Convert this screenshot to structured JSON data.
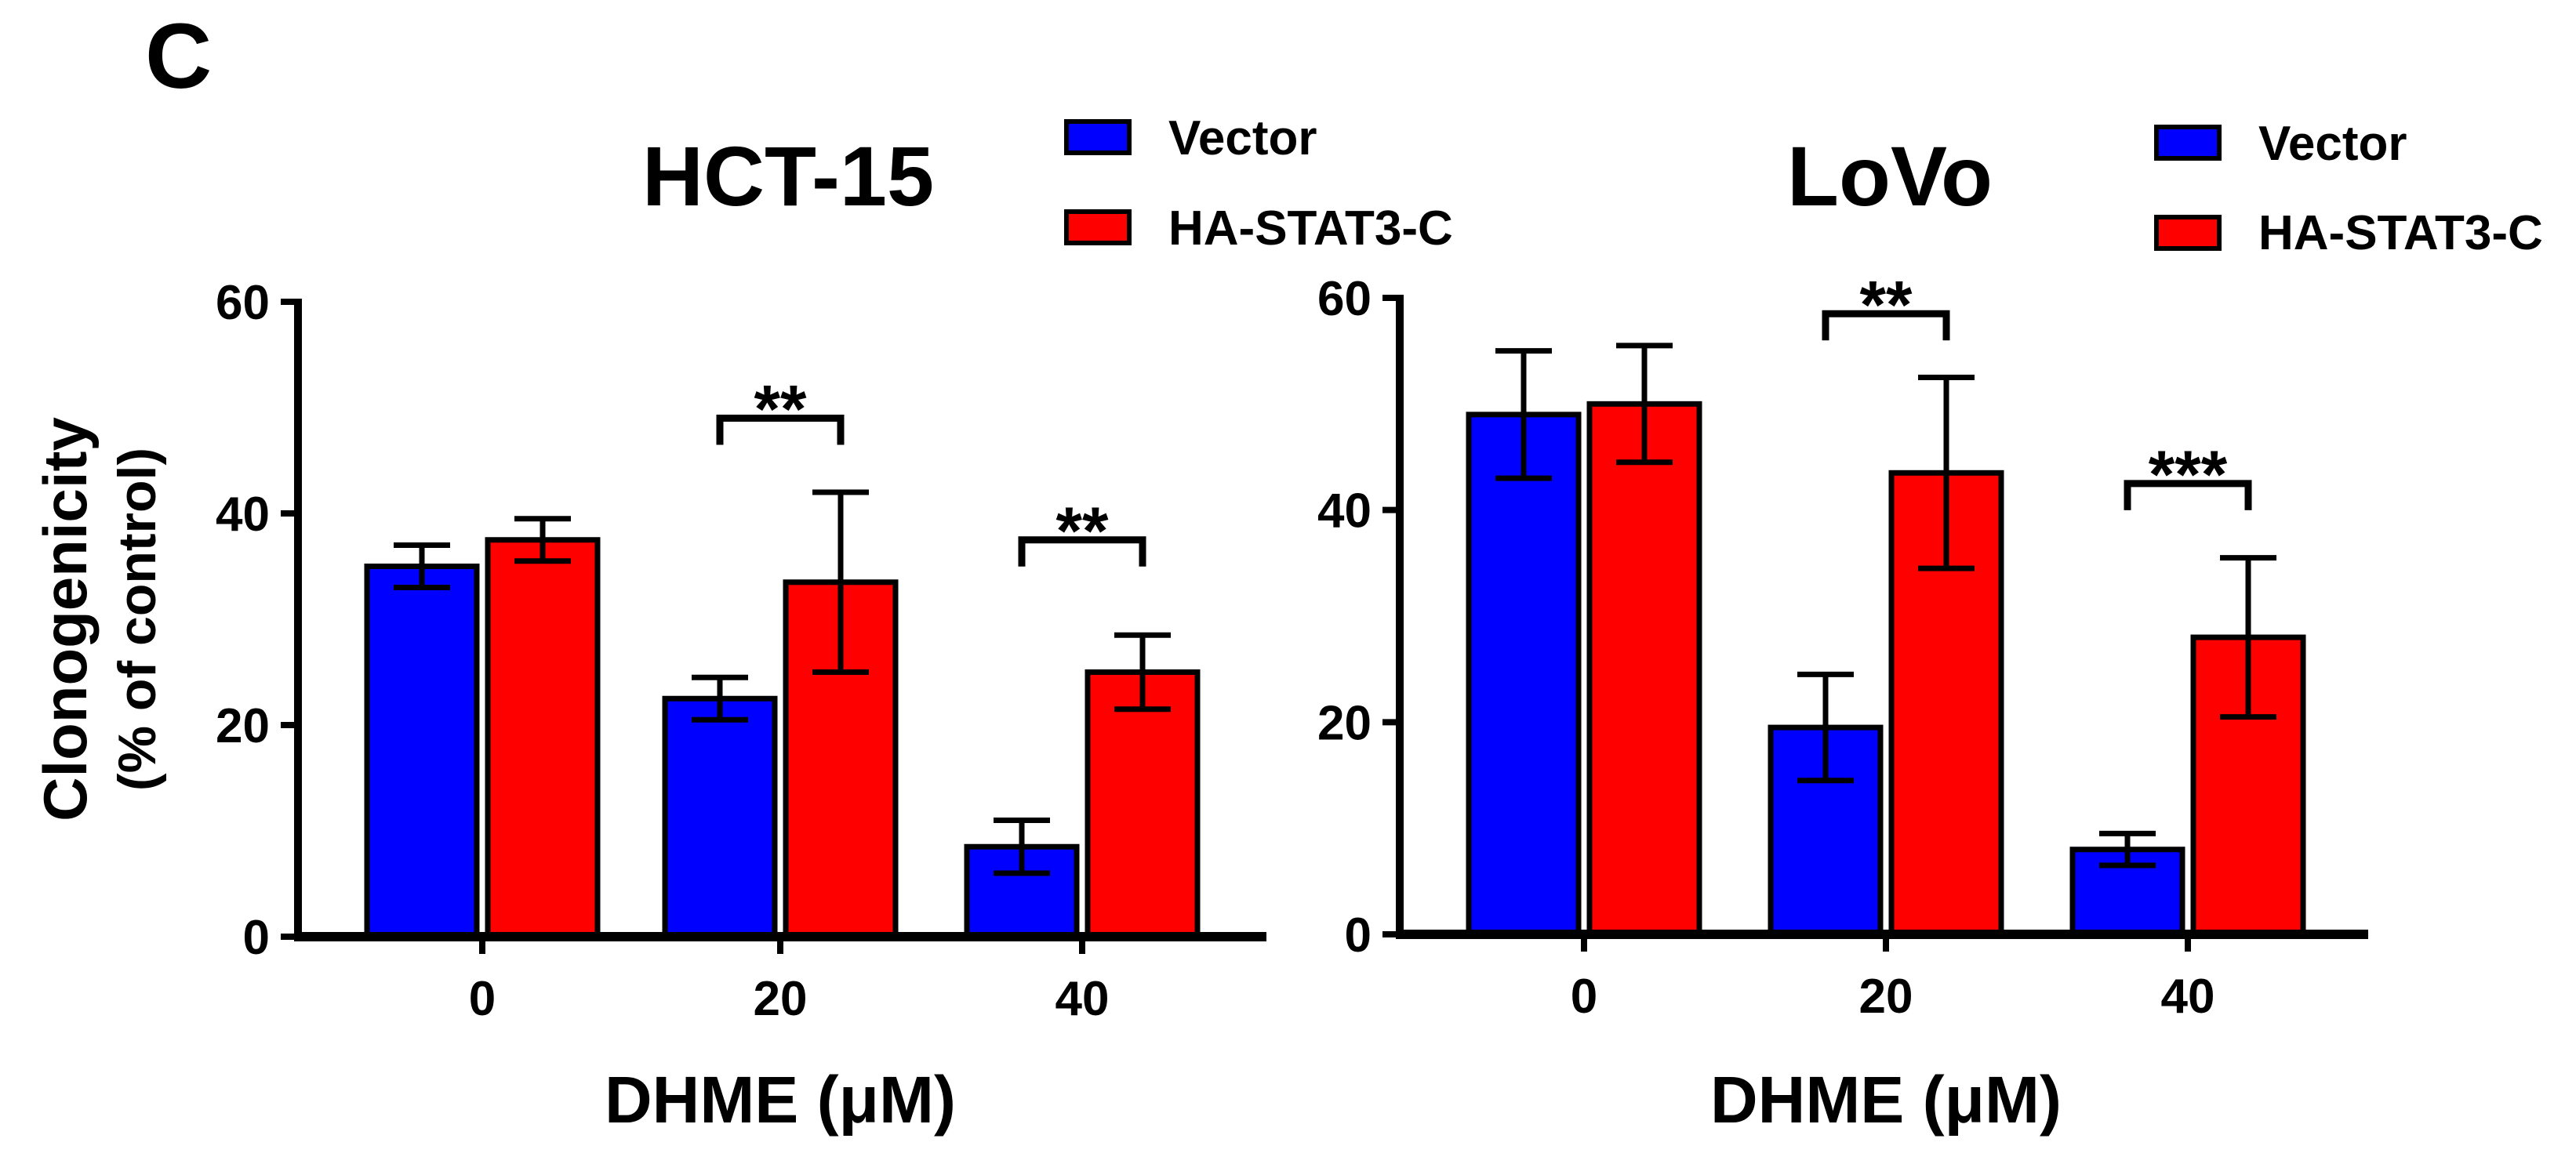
{
  "panel_label": "C",
  "colors": {
    "vector": "#0000ff",
    "stat3": "#ff0000",
    "axis": "#000000"
  },
  "chart_data": [
    {
      "type": "bar",
      "title": "HCT-15",
      "xlabel": "DHME (μM)",
      "ylabel": "Clonogenicity",
      "ylabel2": "(% of control)",
      "categories": [
        "0",
        "20",
        "40"
      ],
      "ylim": [
        0,
        60
      ],
      "yticks": [
        "0",
        "20",
        "40",
        "60"
      ],
      "legend": [
        "Vector",
        "HA-STAT3-C"
      ],
      "series": [
        {
          "name": "Vector",
          "values": [
            35,
            22.5,
            8.5
          ],
          "errors": [
            2,
            2,
            2.5
          ]
        },
        {
          "name": "HA-STAT3-C",
          "values": [
            37.5,
            33.5,
            25
          ],
          "errors": [
            2,
            8.5,
            3.5
          ]
        }
      ],
      "significance": [
        {
          "category": 1,
          "label": "**",
          "level": 49
        },
        {
          "category": 2,
          "label": "**",
          "level": 37.5
        }
      ]
    },
    {
      "type": "bar",
      "title": "LoVo",
      "xlabel": "DHME (μM)",
      "ylabel": "",
      "ylabel2": "",
      "categories": [
        "0",
        "20",
        "40"
      ],
      "ylim": [
        0,
        60
      ],
      "yticks": [
        "0",
        "20",
        "40",
        "60"
      ],
      "legend": [
        "Vector",
        "HA-STAT3-C"
      ],
      "series": [
        {
          "name": "Vector",
          "values": [
            49,
            19.5,
            8
          ],
          "errors": [
            6,
            5,
            1.5
          ]
        },
        {
          "name": "HA-STAT3-C",
          "values": [
            50,
            43.5,
            28
          ],
          "errors": [
            5.5,
            9,
            7.5
          ]
        }
      ],
      "significance": [
        {
          "category": 1,
          "label": "**",
          "level": 58.5
        },
        {
          "category": 2,
          "label": "***",
          "level": 42.5
        }
      ]
    }
  ]
}
